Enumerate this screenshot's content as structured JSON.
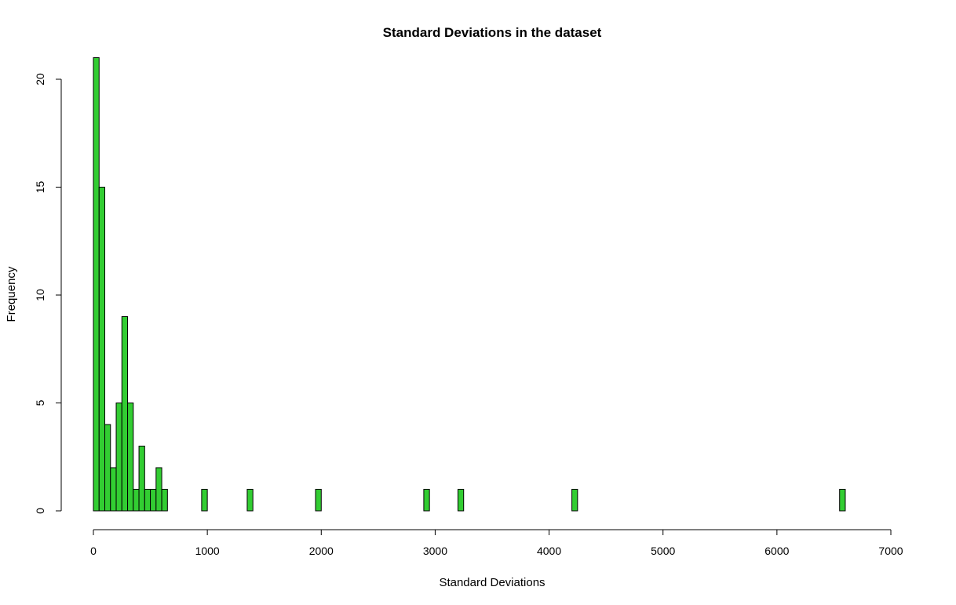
{
  "chart_data": {
    "type": "bar",
    "title": "Standard Deviations in the dataset",
    "xlabel": "Standard Deviations",
    "ylabel": "Frequency",
    "xlim": [
      0,
      7000
    ],
    "ylim": [
      0,
      20
    ],
    "x_ticks": [
      0,
      1000,
      2000,
      3000,
      4000,
      5000,
      6000,
      7000
    ],
    "y_ticks": [
      0,
      5,
      10,
      15,
      20
    ],
    "bin_width": 50,
    "bins": [
      {
        "x0": 0,
        "x1": 50,
        "count": 21
      },
      {
        "x0": 50,
        "x1": 100,
        "count": 15
      },
      {
        "x0": 100,
        "x1": 150,
        "count": 4
      },
      {
        "x0": 150,
        "x1": 200,
        "count": 2
      },
      {
        "x0": 200,
        "x1": 250,
        "count": 5
      },
      {
        "x0": 250,
        "x1": 300,
        "count": 9
      },
      {
        "x0": 300,
        "x1": 350,
        "count": 5
      },
      {
        "x0": 350,
        "x1": 400,
        "count": 1
      },
      {
        "x0": 400,
        "x1": 450,
        "count": 3
      },
      {
        "x0": 450,
        "x1": 500,
        "count": 1
      },
      {
        "x0": 500,
        "x1": 550,
        "count": 1
      },
      {
        "x0": 550,
        "x1": 600,
        "count": 2
      },
      {
        "x0": 600,
        "x1": 650,
        "count": 1
      },
      {
        "x0": 950,
        "x1": 1000,
        "count": 1
      },
      {
        "x0": 1350,
        "x1": 1400,
        "count": 1
      },
      {
        "x0": 1950,
        "x1": 2000,
        "count": 1
      },
      {
        "x0": 2900,
        "x1": 2950,
        "count": 1
      },
      {
        "x0": 3200,
        "x1": 3250,
        "count": 1
      },
      {
        "x0": 4200,
        "x1": 4250,
        "count": 1
      },
      {
        "x0": 6550,
        "x1": 6600,
        "count": 1
      }
    ],
    "bar_color": "#32CD32",
    "grid": false,
    "legend": "none"
  }
}
